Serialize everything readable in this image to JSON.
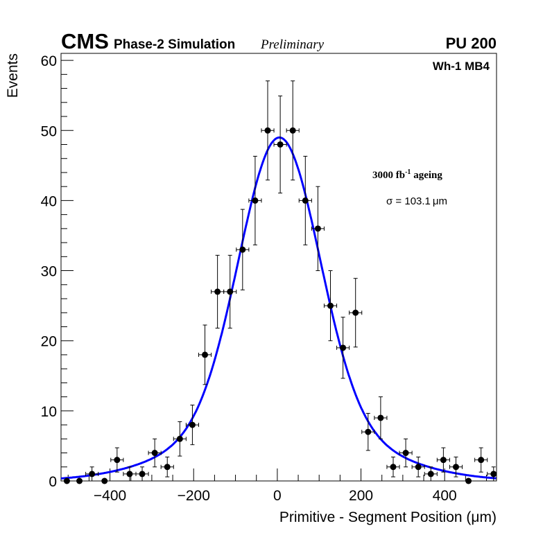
{
  "header": {
    "experiment": "CMS",
    "subtitle": "Phase-2 Simulation",
    "status": "Preliminary",
    "pileup": "PU 200"
  },
  "chart_data": {
    "type": "scatter",
    "title": "",
    "xlabel": "Primitive - Segment Position (μm)",
    "ylabel": "Events",
    "xlim": [
      -517,
      524
    ],
    "ylim": [
      0,
      61
    ],
    "x_ticks": [
      -400,
      -200,
      0,
      200,
      400
    ],
    "x_tick_labels": [
      "−400",
      "−200",
      "0",
      "200",
      "400"
    ],
    "y_ticks": [
      0,
      10,
      20,
      30,
      40,
      50,
      60
    ],
    "y_tick_labels": [
      "0",
      "10",
      "20",
      "30",
      "40",
      "50",
      "60"
    ],
    "grid": false,
    "bin_width": 30,
    "series": [
      {
        "name": "Simulation",
        "marker": "circle",
        "color": "#000000",
        "x": [
          -503,
          -473,
          -443,
          -413,
          -383,
          -353,
          -323,
          -293,
          -263,
          -233,
          -203,
          -173,
          -143,
          -113,
          -83,
          -53,
          -23,
          7,
          37,
          67,
          97,
          127,
          157,
          187,
          217,
          247,
          277,
          307,
          337,
          367,
          397,
          427,
          457,
          487,
          517
        ],
        "values": [
          0,
          0,
          1,
          0,
          3,
          1,
          1,
          4,
          2,
          6,
          8,
          18,
          27,
          27,
          33,
          40,
          50,
          48,
          50,
          40,
          36,
          25,
          19,
          24,
          7,
          9,
          2,
          4,
          2,
          1,
          3,
          2,
          0,
          3,
          1
        ]
      },
      {
        "name": "Fit",
        "type": "line",
        "color": "#0000ff",
        "function": "gaussian-like",
        "peak": 49,
        "mean": 5,
        "sigma": 103.1
      }
    ],
    "annotations": {
      "region": "Wh-1 MB4",
      "ageing": "3000 fb",
      "ageing_sup": "-1",
      "ageing_suffix": " ageing",
      "sigma": "σ = 103.1 μm"
    }
  }
}
